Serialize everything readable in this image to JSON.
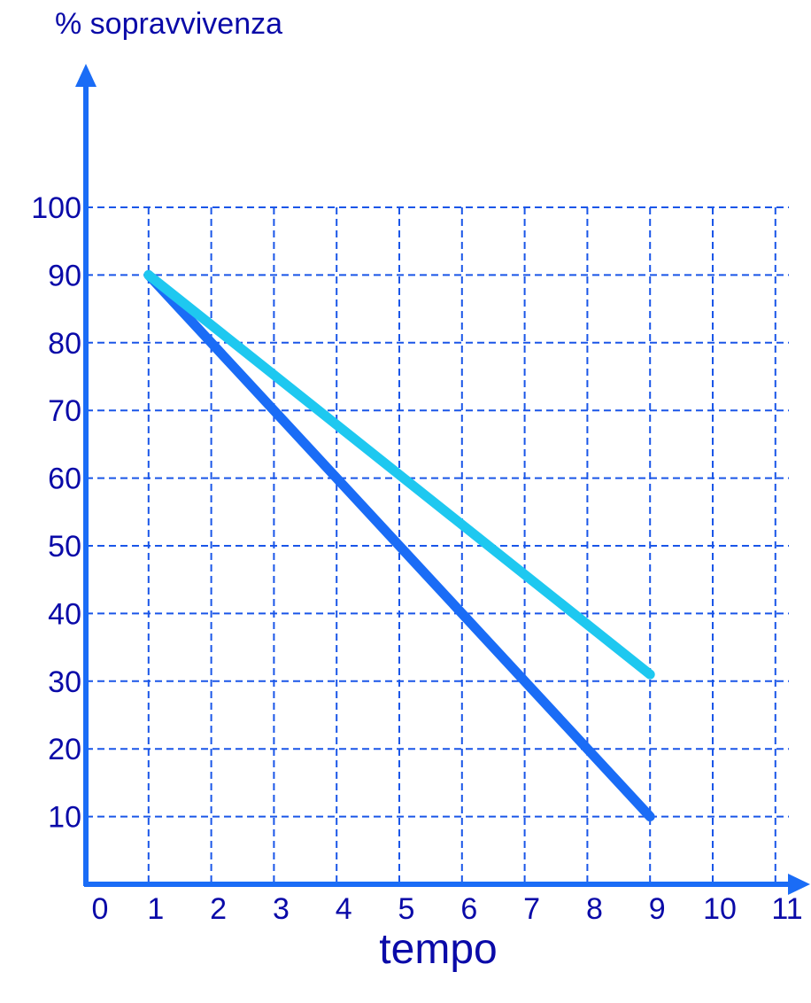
{
  "chart_data": {
    "type": "line",
    "ylabel": "% sopravvivenza",
    "xlabel": "tempo",
    "xlim": [
      0,
      11
    ],
    "ylim": [
      0,
      100
    ],
    "x_ticks": [
      0,
      1,
      2,
      3,
      4,
      5,
      6,
      7,
      8,
      9,
      10,
      11
    ],
    "y_ticks": [
      10,
      20,
      30,
      40,
      50,
      60,
      70,
      80,
      90,
      100
    ],
    "grid": true,
    "series": [
      {
        "color": "#1a6cf6",
        "x": [
          1,
          9
        ],
        "y": [
          90,
          10
        ]
      },
      {
        "color": "#1ec8f0",
        "x": [
          1,
          9
        ],
        "y": [
          90,
          31
        ]
      }
    ],
    "axis_color": "#1a6cf6",
    "grid_color": "#1a56e8"
  }
}
